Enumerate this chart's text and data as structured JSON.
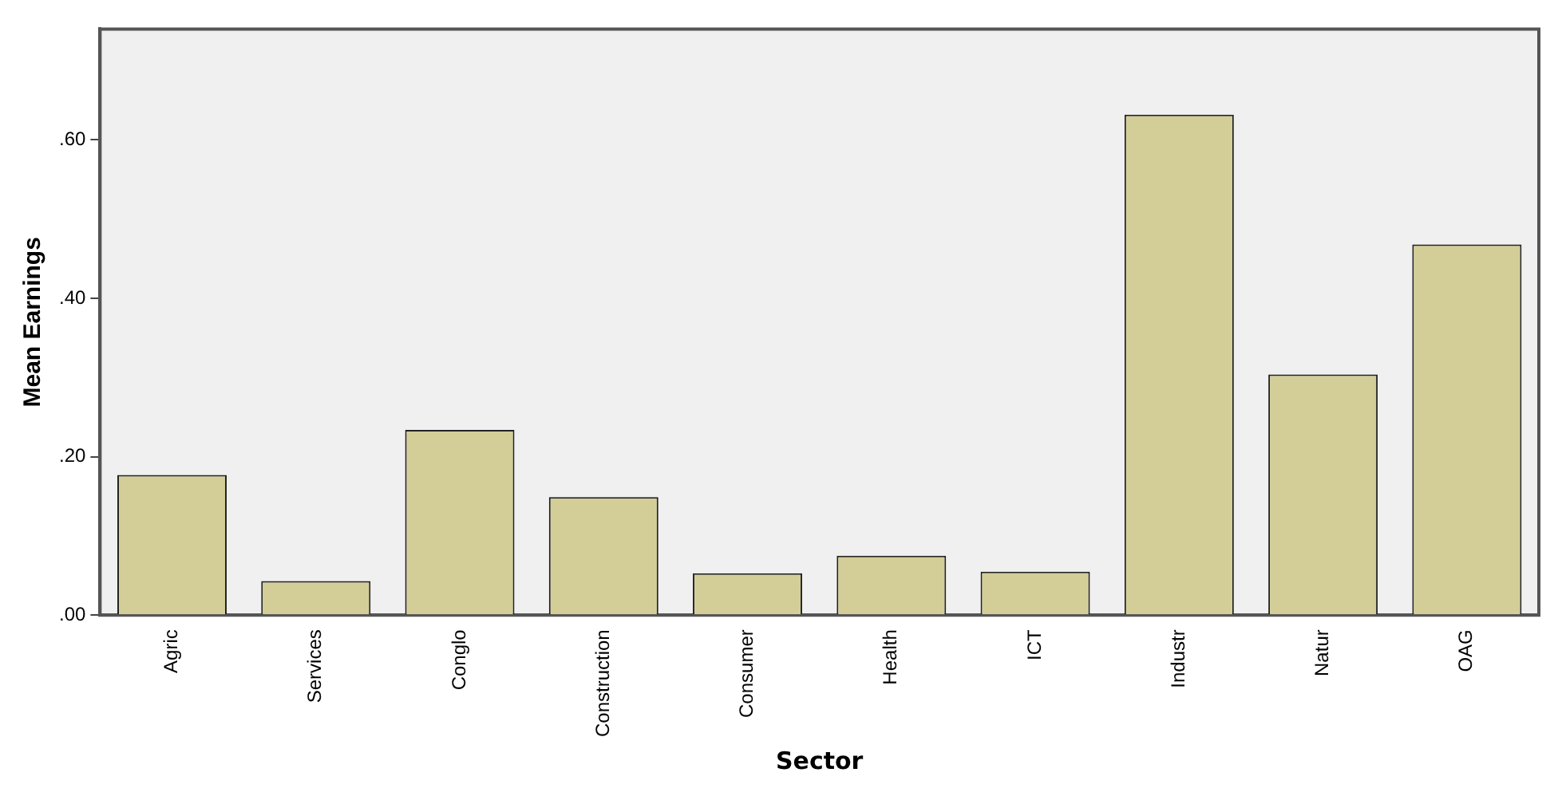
{
  "chart_data": {
    "type": "bar",
    "xlabel": "Sector",
    "ylabel": "Mean Earnings",
    "categories": [
      "Agric",
      "Services",
      "Conglo",
      "Construction",
      "Consumer",
      "Health",
      "ICT",
      "Industr",
      "Natur",
      "OAG"
    ],
    "values": [
      0.177,
      0.043,
      0.234,
      0.149,
      0.053,
      0.075,
      0.055,
      0.632,
      0.304,
      0.468
    ],
    "color": "#d3ce97",
    "ylim": [
      0,
      0.74
    ],
    "yticks": [
      {
        "value": 0,
        "label": ".00"
      },
      {
        "value": 0.2,
        "label": ".20"
      },
      {
        "value": 0.4,
        "label": ".40"
      },
      {
        "value": 0.6,
        "label": ".60"
      }
    ],
    "grid": false,
    "legend": false
  }
}
